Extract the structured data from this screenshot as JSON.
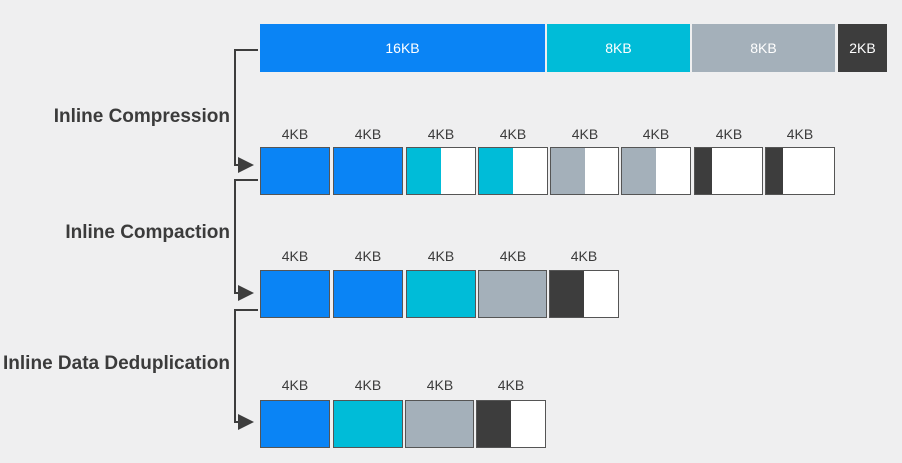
{
  "colors": {
    "blue": "#0a84f5",
    "cyan": "#00bcd8",
    "gray": "#a4b0ba",
    "dark": "#3d3d3d",
    "white": "#ffffff"
  },
  "steps": {
    "compression": "Inline Compression",
    "compaction": "Inline Compaction",
    "deduplication": "Inline Data Deduplication"
  },
  "rows": {
    "original": [
      {
        "label": "16KB",
        "color": "blue"
      },
      {
        "label": "8KB",
        "color": "cyan"
      },
      {
        "label": "8KB",
        "color": "gray"
      },
      {
        "label": "2KB",
        "color": "dark"
      }
    ],
    "compressed": [
      {
        "label": "4KB",
        "color": "blue",
        "fill": 1.0
      },
      {
        "label": "4KB",
        "color": "blue",
        "fill": 1.0
      },
      {
        "label": "4KB",
        "color": "cyan",
        "fill": 0.5
      },
      {
        "label": "4KB",
        "color": "cyan",
        "fill": 0.5
      },
      {
        "label": "4KB",
        "color": "gray",
        "fill": 0.5
      },
      {
        "label": "4KB",
        "color": "gray",
        "fill": 0.5
      },
      {
        "label": "4KB",
        "color": "dark",
        "fill": 0.25
      },
      {
        "label": "4KB",
        "color": "dark",
        "fill": 0.25
      }
    ],
    "compacted": [
      {
        "label": "4KB",
        "color": "blue",
        "fill": 1.0
      },
      {
        "label": "4KB",
        "color": "blue",
        "fill": 1.0
      },
      {
        "label": "4KB",
        "color": "cyan",
        "fill": 1.0
      },
      {
        "label": "4KB",
        "color": "gray",
        "fill": 1.0
      },
      {
        "label": "4KB",
        "color": "dark",
        "fill": 0.5
      }
    ],
    "deduplicated": [
      {
        "label": "4KB",
        "color": "blue",
        "fill": 1.0
      },
      {
        "label": "4KB",
        "color": "cyan",
        "fill": 1.0
      },
      {
        "label": "4KB",
        "color": "gray",
        "fill": 1.0
      },
      {
        "label": "4KB",
        "color": "dark",
        "fill": 0.5
      }
    ]
  }
}
